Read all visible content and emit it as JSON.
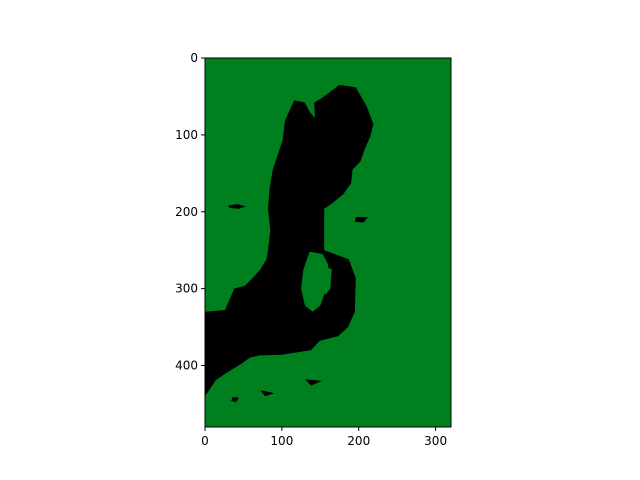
{
  "chart_data": {
    "type": "heatmap",
    "title": "",
    "xlabel": "",
    "ylabel": "",
    "xlim": [
      0,
      320
    ],
    "ylim": [
      480,
      0
    ],
    "y_inverted": true,
    "x_ticks": [
      "0",
      "100",
      "200",
      "300"
    ],
    "x_tick_values": [
      0,
      100,
      200,
      300
    ],
    "y_ticks": [
      "0",
      "100",
      "200",
      "300",
      "400"
    ],
    "y_tick_values": [
      0,
      100,
      200,
      300,
      400
    ],
    "grid": false,
    "legend": "none",
    "colors": {
      "background": "#007f1f",
      "foreground": "#000000"
    },
    "mask_description": "Binary segmentation mask: black region on green background; image size 320 x 480",
    "black_regions": [
      {
        "name": "main-shape",
        "points": [
          [
            116,
            55
          ],
          [
            130,
            58
          ],
          [
            136,
            70
          ],
          [
            143,
            78
          ],
          [
            142,
            58
          ],
          [
            152,
            52
          ],
          [
            175,
            35
          ],
          [
            196,
            38
          ],
          [
            210,
            62
          ],
          [
            219,
            86
          ],
          [
            215,
            102
          ],
          [
            208,
            118
          ],
          [
            202,
            135
          ],
          [
            192,
            145
          ],
          [
            190,
            163
          ],
          [
            180,
            177
          ],
          [
            164,
            190
          ],
          [
            155,
            196
          ],
          [
            155,
            250
          ],
          [
            187,
            262
          ],
          [
            196,
            286
          ],
          [
            195,
            330
          ],
          [
            186,
            350
          ],
          [
            173,
            362
          ],
          [
            149,
            368
          ],
          [
            138,
            380
          ],
          [
            100,
            386
          ],
          [
            70,
            387
          ],
          [
            58,
            390
          ],
          [
            47,
            398
          ],
          [
            30,
            408
          ],
          [
            14,
            419
          ],
          [
            0,
            440
          ],
          [
            0,
            330
          ],
          [
            26,
            328
          ],
          [
            38,
            300
          ],
          [
            52,
            296
          ],
          [
            66,
            282
          ],
          [
            72,
            275
          ],
          [
            80,
            262
          ],
          [
            82,
            250
          ],
          [
            85,
            224
          ],
          [
            82,
            196
          ],
          [
            84,
            170
          ],
          [
            88,
            146
          ],
          [
            101,
            107
          ],
          [
            104,
            82
          ]
        ]
      },
      {
        "name": "left-blob",
        "points": [
          [
            30,
            192
          ],
          [
            42,
            190
          ],
          [
            53,
            193
          ],
          [
            44,
            196
          ],
          [
            32,
            195
          ]
        ]
      },
      {
        "name": "spot-1",
        "points": [
          [
            36,
            441
          ],
          [
            44,
            442
          ],
          [
            40,
            448
          ],
          [
            34,
            446
          ]
        ]
      },
      {
        "name": "spot-2",
        "points": [
          [
            72,
            432
          ],
          [
            90,
            436
          ],
          [
            78,
            440
          ]
        ]
      },
      {
        "name": "spot-3",
        "points": [
          [
            130,
            418
          ],
          [
            152,
            420
          ],
          [
            138,
            426
          ]
        ]
      },
      {
        "name": "spot-4",
        "points": [
          [
            196,
            207
          ],
          [
            212,
            207
          ],
          [
            206,
            214
          ],
          [
            195,
            213
          ]
        ]
      },
      {
        "name": "spot-5",
        "points": [
          [
            180,
            74
          ],
          [
            188,
            74
          ],
          [
            188,
            90
          ],
          [
            181,
            88
          ]
        ]
      }
    ],
    "green_holes": [
      {
        "name": "hole-1",
        "points": [
          [
            136,
            252
          ],
          [
            153,
            255
          ],
          [
            160,
            268
          ],
          [
            158,
            300
          ],
          [
            150,
            322
          ],
          [
            140,
            330
          ],
          [
            130,
            322
          ],
          [
            125,
            300
          ],
          [
            128,
            275
          ]
        ]
      },
      {
        "name": "hole-2",
        "points": [
          [
            155,
            270
          ],
          [
            165,
            275
          ],
          [
            163,
            300
          ],
          [
            157,
            308
          ],
          [
            153,
            300
          ]
        ]
      }
    ]
  }
}
